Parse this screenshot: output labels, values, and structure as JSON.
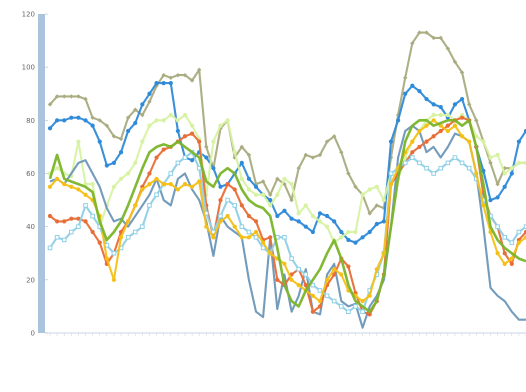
{
  "chart_data": {
    "type": "line",
    "title": "",
    "xlabel": "",
    "ylabel": "",
    "ylim": [
      0,
      120
    ],
    "y_ticks": [
      0,
      20,
      40,
      60,
      80,
      100,
      120
    ],
    "grid": false,
    "legend": "none",
    "axis_color": "#a9c4dc",
    "series": [
      {
        "color": "#a9ab80",
        "marker": "diamond",
        "values": [
          86,
          89,
          89,
          89,
          89,
          88,
          81,
          80,
          78,
          74,
          73,
          81,
          84,
          82,
          87,
          93,
          97,
          96,
          97,
          97,
          95,
          99,
          70,
          62,
          77,
          80,
          66,
          70,
          67,
          56,
          57,
          52,
          58,
          56,
          50,
          62,
          67,
          66,
          67,
          72,
          74,
          68,
          60,
          55,
          52,
          45,
          48,
          47,
          66,
          82,
          96,
          109,
          113,
          113,
          111,
          111,
          107,
          102,
          98,
          86,
          80,
          72,
          64,
          56,
          62,
          62,
          64,
          64
        ]
      },
      {
        "color": "#2f8ad8",
        "marker": "circle",
        "values": [
          77,
          80,
          80,
          81,
          81,
          80,
          78,
          72,
          63,
          64,
          68,
          76,
          79,
          86,
          90,
          94,
          94,
          94,
          76,
          66,
          65,
          68,
          66,
          62,
          55,
          56,
          60,
          64,
          58,
          55,
          52,
          50,
          44,
          46,
          43,
          42,
          40,
          38,
          45,
          44,
          42,
          38,
          35,
          34,
          36,
          38,
          41,
          42,
          72,
          80,
          90,
          93,
          91,
          88,
          86,
          85,
          81,
          86,
          88,
          80,
          70,
          61,
          50,
          51,
          55,
          60,
          72,
          76
        ]
      },
      {
        "color": "#d7f2a2",
        "marker": "circle",
        "values": [
          60,
          62,
          60,
          59,
          72,
          56,
          56,
          40,
          48,
          55,
          58,
          60,
          64,
          72,
          78,
          80,
          80,
          82,
          80,
          82,
          78,
          73,
          52,
          72,
          78,
          80,
          68,
          58,
          54,
          52,
          52,
          48,
          52,
          58,
          56,
          45,
          48,
          44,
          42,
          40,
          34,
          36,
          38,
          38,
          52,
          54,
          55,
          50,
          60,
          58,
          66,
          72,
          76,
          80,
          82,
          82,
          82,
          80,
          82,
          80,
          74,
          72,
          66,
          67,
          60,
          62,
          64,
          64
        ]
      },
      {
        "color": "#6c97b8",
        "marker": "none",
        "values": [
          57,
          58,
          56,
          60,
          64,
          65,
          60,
          55,
          47,
          42,
          43,
          40,
          44,
          48,
          52,
          58,
          50,
          48,
          58,
          60,
          54,
          50,
          42,
          29,
          44,
          40,
          38,
          36,
          20,
          8,
          6,
          36,
          9,
          22,
          8,
          14,
          24,
          8,
          7,
          22,
          26,
          12,
          10,
          11,
          2,
          10,
          14,
          20,
          40,
          66,
          76,
          78,
          76,
          68,
          70,
          66,
          70,
          75,
          74,
          72,
          60,
          40,
          17,
          14,
          12,
          8,
          5,
          5
        ]
      },
      {
        "color": "#e86d36",
        "marker": "circle",
        "values": [
          44,
          42,
          42,
          43,
          43,
          42,
          38,
          34,
          26,
          30,
          38,
          42,
          48,
          55,
          60,
          66,
          69,
          70,
          72,
          74,
          75,
          72,
          48,
          36,
          50,
          56,
          54,
          48,
          44,
          42,
          35,
          36,
          20,
          18,
          22,
          24,
          18,
          8,
          10,
          18,
          22,
          28,
          25,
          15,
          8,
          7,
          12,
          22,
          56,
          60,
          64,
          68,
          70,
          72,
          74,
          76,
          78,
          80,
          81,
          80,
          70,
          52,
          44,
          40,
          30,
          26,
          35,
          38
        ]
      },
      {
        "color": "#8fd0e6",
        "marker": "square",
        "values": [
          32,
          36,
          35,
          38,
          40,
          48,
          44,
          40,
          33,
          30,
          32,
          36,
          38,
          40,
          48,
          52,
          56,
          60,
          64,
          66,
          68,
          62,
          45,
          38,
          44,
          50,
          48,
          40,
          38,
          36,
          32,
          30,
          36,
          36,
          28,
          24,
          22,
          18,
          16,
          14,
          12,
          10,
          8,
          10,
          8,
          16,
          22,
          30,
          60,
          62,
          64,
          66,
          64,
          62,
          60,
          62,
          64,
          66,
          64,
          62,
          58,
          50,
          44,
          40,
          36,
          34,
          38,
          40
        ]
      },
      {
        "color": "#f4c018",
        "marker": "circle",
        "values": [
          55,
          58,
          56,
          55,
          54,
          52,
          50,
          44,
          28,
          20,
          36,
          42,
          48,
          54,
          56,
          58,
          56,
          56,
          54,
          56,
          55,
          57,
          40,
          36,
          42,
          44,
          40,
          36,
          36,
          38,
          34,
          30,
          28,
          26,
          20,
          18,
          16,
          14,
          12,
          20,
          24,
          22,
          16,
          14,
          12,
          14,
          24,
          30,
          56,
          62,
          68,
          72,
          76,
          78,
          80,
          78,
          76,
          78,
          74,
          72,
          60,
          48,
          38,
          30,
          26,
          28,
          34,
          36
        ]
      },
      {
        "color": "#7ab52a",
        "marker": "none",
        "values": [
          58,
          67,
          58,
          57,
          56,
          55,
          53,
          42,
          35,
          38,
          42,
          48,
          55,
          62,
          68,
          70,
          71,
          70,
          72,
          70,
          68,
          66,
          57,
          55,
          60,
          62,
          60,
          54,
          50,
          48,
          47,
          44,
          32,
          18,
          12,
          10,
          16,
          20,
          24,
          30,
          35,
          28,
          18,
          12,
          10,
          8,
          12,
          22,
          40,
          58,
          72,
          78,
          80,
          80,
          78,
          79,
          80,
          80,
          78,
          80,
          70,
          56,
          40,
          35,
          32,
          30,
          28,
          27
        ]
      }
    ]
  }
}
